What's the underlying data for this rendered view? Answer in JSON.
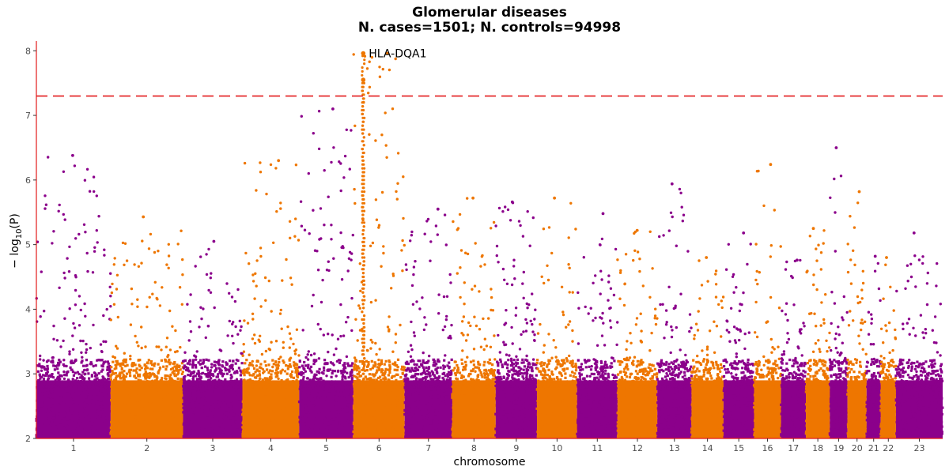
{
  "chart_data": {
    "type": "scatter",
    "subtype": "manhattan",
    "title": "Glomerular diseases",
    "subtitle": "N. cases=1501; N. controls=94998",
    "xlabel": "chromosome",
    "ylabel_base": "− log",
    "ylabel_sub": "10",
    "ylabel_arg": "(P)",
    "ylim": [
      2,
      8.15
    ],
    "yticks": [
      2,
      3,
      4,
      5,
      6,
      7,
      8
    ],
    "significance_line": 7.3,
    "colors": {
      "odd": "#8B008B",
      "even": "#EE7600",
      "sigline": "#E31A1C",
      "axis": "#E31A1C"
    },
    "chromosomes": [
      {
        "label": "1",
        "start": 0,
        "length": 248,
        "peak": 6.38
      },
      {
        "label": "2",
        "start": 248,
        "length": 242,
        "peak": 5.43
      },
      {
        "label": "3",
        "start": 490,
        "length": 198,
        "peak": 5.05
      },
      {
        "label": "4",
        "start": 688,
        "length": 190,
        "peak": 6.3
      },
      {
        "label": "5",
        "start": 878,
        "length": 181,
        "peak": 7.1
      },
      {
        "label": "6",
        "start": 1059,
        "length": 171,
        "peak": 7.96
      },
      {
        "label": "7",
        "start": 1230,
        "length": 159,
        "peak": 5.55
      },
      {
        "label": "8",
        "start": 1389,
        "length": 145,
        "peak": 5.72
      },
      {
        "label": "9",
        "start": 1534,
        "length": 138,
        "peak": 5.66
      },
      {
        "label": "10",
        "start": 1672,
        "length": 134,
        "peak": 5.72
      },
      {
        "label": "11",
        "start": 1806,
        "length": 135,
        "peak": 5.48
      },
      {
        "label": "12",
        "start": 1941,
        "length": 133,
        "peak": 5.22
      },
      {
        "label": "13",
        "start": 2074,
        "length": 114,
        "peak": 5.94
      },
      {
        "label": "14",
        "start": 2188,
        "length": 107,
        "peak": 4.8
      },
      {
        "label": "15",
        "start": 2295,
        "length": 102,
        "peak": 5.18
      },
      {
        "label": "16",
        "start": 2397,
        "length": 90,
        "peak": 6.24
      },
      {
        "label": "17",
        "start": 2487,
        "length": 83,
        "peak": 4.76
      },
      {
        "label": "18",
        "start": 2570,
        "length": 80,
        "peak": 5.25
      },
      {
        "label": "19",
        "start": 2650,
        "length": 59,
        "peak": 6.5
      },
      {
        "label": "20",
        "start": 2709,
        "length": 64,
        "peak": 5.82
      },
      {
        "label": "21",
        "start": 2773,
        "length": 47,
        "peak": 4.82
      },
      {
        "label": "22",
        "start": 2820,
        "length": 51,
        "peak": 4.8
      },
      {
        "label": "23",
        "start": 2871,
        "length": 156,
        "peak": 5.18
      }
    ],
    "highlighted_points": [
      {
        "chrom": "6",
        "pos": 32.6,
        "value": 7.96
      },
      {
        "chrom": "6",
        "pos": 32.6,
        "value": 7.55
      }
    ],
    "annotations": [
      {
        "text": "HLA-DQA1",
        "chrom": "6",
        "pos": 32.6,
        "value": 7.96
      }
    ]
  }
}
